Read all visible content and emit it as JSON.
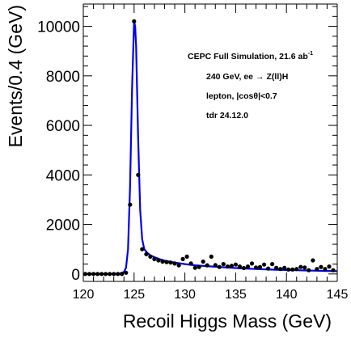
{
  "chart_data": {
    "type": "scatter",
    "xlabel": "Recoil Higgs Mass (GeV)",
    "ylabel": "Events/0.4 (GeV)",
    "xlim": [
      120,
      145
    ],
    "ylim": [
      -300,
      10900
    ],
    "x_ticks": [
      "120",
      "125",
      "130",
      "135",
      "140",
      "145"
    ],
    "y_ticks": [
      "0",
      "2000",
      "4000",
      "6000",
      "8000",
      "10000"
    ],
    "grid": false,
    "annotations": {
      "line1_main": "CEPC Full Simulation, 21.6 ab",
      "line1_sup": "-1",
      "line2_pre": "240 GeV, ee",
      "line2_arrow": "→",
      "line2_post": "Z(ll)H",
      "line3_pre": "lepton, |cos",
      "line3_theta": "θ",
      "line3_post": "|<0.7",
      "line4": "tdr 24.12.0"
    },
    "colors": {
      "fit": "#0000ee",
      "markers": "#000000",
      "axis": "#000000"
    },
    "series": [
      {
        "marker": "circle",
        "x": [
          120.2,
          120.6,
          121.0,
          121.4,
          121.8,
          122.2,
          122.6,
          123.0,
          123.4,
          123.8,
          124.2,
          124.6,
          125.0,
          125.4,
          125.8,
          126.2,
          126.6,
          127.0,
          127.4,
          127.8,
          128.2,
          128.6,
          129.0,
          129.4,
          129.8,
          130.2,
          130.6,
          131.0,
          131.4,
          131.8,
          132.2,
          132.6,
          133.0,
          133.4,
          133.8,
          134.2,
          134.6,
          135.0,
          135.4,
          135.8,
          136.2,
          136.6,
          137.0,
          137.4,
          137.8,
          138.2,
          138.6,
          139.0,
          139.4,
          139.8,
          140.2,
          140.6,
          141.0,
          141.4,
          141.8,
          142.2,
          142.6,
          143.0,
          143.4,
          143.8,
          144.2,
          144.6
        ],
        "y": [
          0,
          0,
          0,
          0,
          0,
          0,
          0,
          0,
          0,
          0,
          50,
          2800,
          10200,
          4000,
          1000,
          800,
          700,
          600,
          550,
          500,
          480,
          460,
          420,
          350,
          600,
          700,
          420,
          250,
          280,
          500,
          350,
          700,
          360,
          280,
          400,
          300,
          330,
          380,
          300,
          240,
          300,
          420,
          260,
          280,
          380,
          220,
          400,
          250,
          200,
          250,
          180,
          180,
          200,
          280,
          260,
          150,
          550,
          200,
          280,
          200,
          300,
          150
        ]
      },
      {
        "type": "line",
        "x": [
          120.0,
          121.0,
          122.0,
          123.0,
          123.5,
          124.0,
          124.2,
          124.4,
          124.6,
          124.8,
          125.0,
          125.1,
          125.2,
          125.4,
          125.6,
          125.8,
          126.0,
          126.3,
          126.6,
          127.0,
          127.5,
          128.0,
          129.0,
          130.0,
          131.0,
          132.0,
          133.0,
          134.0,
          135.0,
          136.0,
          137.0,
          138.0,
          139.0,
          140.0,
          141.0,
          142.0,
          143.0,
          144.0,
          145.0
        ],
        "y": [
          0,
          0,
          0,
          0,
          10,
          80,
          250,
          1000,
          3500,
          7500,
          10200,
          10000,
          9200,
          5500,
          2600,
          1400,
          1000,
          850,
          750,
          680,
          600,
          540,
          460,
          400,
          350,
          320,
          290,
          265,
          240,
          220,
          200,
          185,
          170,
          160,
          150,
          140,
          130,
          120,
          110
        ]
      }
    ]
  }
}
